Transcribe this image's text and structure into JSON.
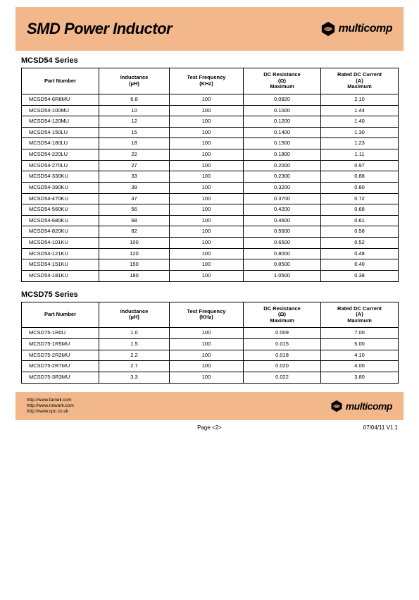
{
  "header": {
    "title": "SMD Power Inductor",
    "brand": "multicomp"
  },
  "colors": {
    "band_bg": "#f2b78b",
    "text": "#000000",
    "border": "#000000",
    "page_bg": "#ffffff"
  },
  "tables": {
    "columns": [
      {
        "l1": "Part Number",
        "l2": "",
        "l3": ""
      },
      {
        "l1": "Inductance",
        "l2": "(µH)",
        "l3": ""
      },
      {
        "l1": "Test Frequency",
        "l2": "(KHz)",
        "l3": ""
      },
      {
        "l1": "DC Resistance",
        "l2": "(Ω)",
        "l3": "Maximum"
      },
      {
        "l1": "Rated DC Current",
        "l2": "(A)",
        "l3": "Maximum"
      }
    ]
  },
  "series1": {
    "title": "MCSD54 Series",
    "rows": [
      [
        "MCSD54-6R8MU",
        "6.8",
        "100",
        "0.0820",
        "2.10"
      ],
      [
        "MCSD54-100MU",
        "10",
        "100",
        "0.1000",
        "1.44"
      ],
      [
        "MCSD54-120MU",
        "12",
        "100",
        "0.1200",
        "1.40"
      ],
      [
        "MCSD54-150LU",
        "15",
        "100",
        "0.1400",
        "1.30"
      ],
      [
        "MCSD54-180LU",
        "18",
        "100",
        "0.1500",
        "1.23"
      ],
      [
        "MCSD54-220LU",
        "22",
        "100",
        "0.1800",
        "1.11"
      ],
      [
        "MCSD54-270LU",
        "27",
        "100",
        "0.2000",
        "0.97"
      ],
      [
        "MCSD54-330KU",
        "33",
        "100",
        "0.2300",
        "0.88"
      ],
      [
        "MCSD54-390KU",
        "39",
        "100",
        "0.3200",
        "0.80"
      ],
      [
        "MCSD54-470KU",
        "47",
        "100",
        "0.3700",
        "0.72"
      ],
      [
        "MCSD54-560KU",
        "56",
        "100",
        "0.4200",
        "0.68"
      ],
      [
        "MCSD54-680KU",
        "68",
        "100",
        "0.4600",
        "0.61"
      ],
      [
        "MCSD54-820KU",
        "82",
        "100",
        "0.5600",
        "0.58"
      ],
      [
        "MCSD54-101KU",
        "100",
        "100",
        "0.6500",
        "0.52"
      ],
      [
        "MCSD54-121KU",
        "120",
        "100",
        "0.8000",
        "0.48"
      ],
      [
        "MCSD54-151KU",
        "150",
        "100",
        "0.8500",
        "0.40"
      ],
      [
        "MCSD54-181KU",
        "180",
        "100",
        "1.0500",
        "0.38"
      ]
    ]
  },
  "series2": {
    "title": "MCSD75 Series",
    "rows": [
      [
        "MCSD75-1R0U",
        "1.0",
        "100",
        "0.009",
        "7.00"
      ],
      [
        "MCSD75-1R5MU",
        "1.5",
        "100",
        "0.015",
        "5.00"
      ],
      [
        "MCSD75-2R2MU",
        "2.2",
        "100",
        "0.018",
        "4.10"
      ],
      [
        "MCSD75-2R7MU",
        "2.7",
        "100",
        "0.020",
        "4.00"
      ],
      [
        "MCSD75-3R3MU",
        "3.3",
        "100",
        "0.022",
        "3.80"
      ]
    ]
  },
  "footer": {
    "links": [
      "http://www.farnell.com",
      "http://www.newark.com",
      "http://www.cpc.co.uk"
    ],
    "page": "Page <2>",
    "version": "07/04/11  V1.1"
  }
}
